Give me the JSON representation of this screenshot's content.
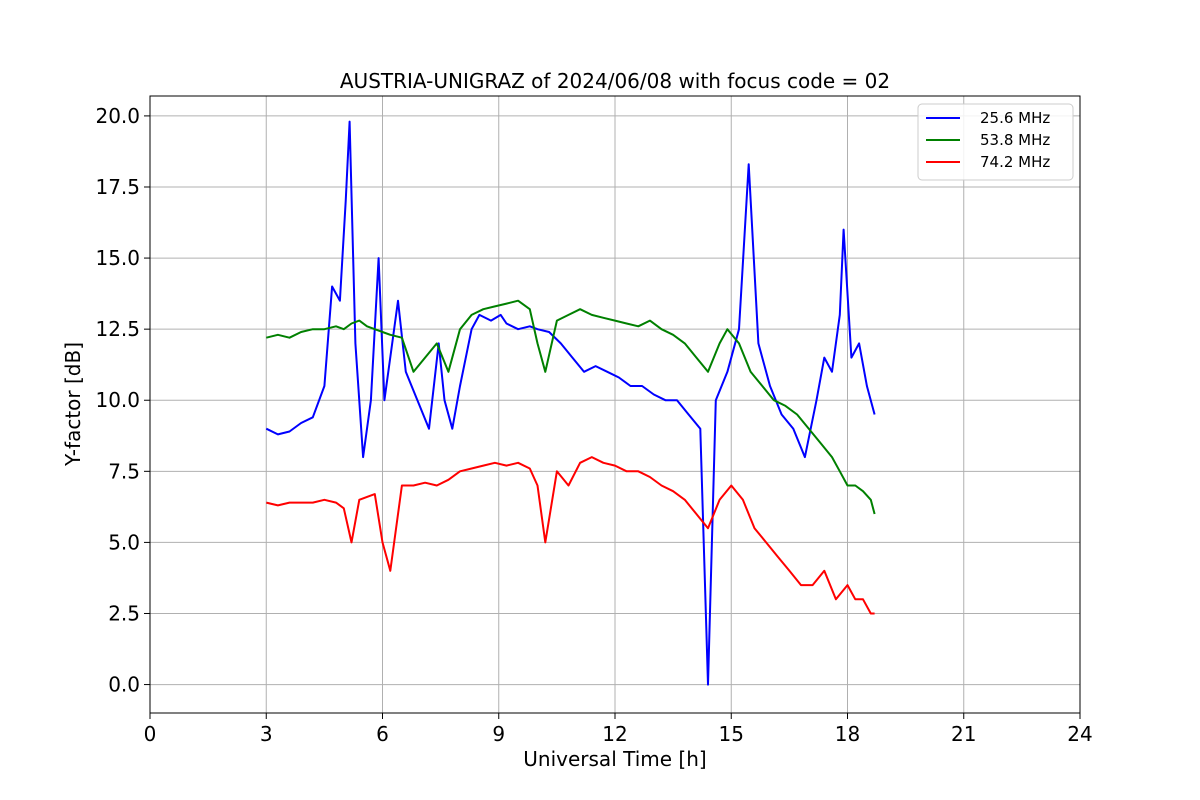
{
  "chart_data": {
    "type": "line",
    "title": "AUSTRIA-UNIGRAZ of 2024/06/08 with focus code = 02",
    "xlabel": "Universal Time [h]",
    "ylabel": "Y-factor [dB]",
    "xlim": [
      0,
      24
    ],
    "ylim": [
      -1,
      20.7
    ],
    "xticks": [
      0,
      3,
      6,
      9,
      12,
      15,
      18,
      21,
      24
    ],
    "xtick_labels": [
      "0",
      "3",
      "6",
      "9",
      "12",
      "15",
      "18",
      "21",
      "24"
    ],
    "yticks": [
      0,
      2.5,
      5,
      7.5,
      10,
      12.5,
      15,
      17.5,
      20
    ],
    "ytick_labels": [
      "0.0",
      "2.5",
      "5.0",
      "7.5",
      "10.0",
      "12.5",
      "15.0",
      "17.5",
      "20.0"
    ],
    "grid": true,
    "legend_position": "top-right",
    "series": [
      {
        "name": "25.6 MHz",
        "color": "#0000ff",
        "x": [
          3.0,
          3.3,
          3.6,
          3.9,
          4.2,
          4.5,
          4.7,
          4.9,
          5.05,
          5.15,
          5.3,
          5.5,
          5.7,
          5.9,
          6.05,
          6.25,
          6.4,
          6.6,
          6.9,
          7.2,
          7.45,
          7.6,
          7.8,
          8.0,
          8.3,
          8.5,
          8.8,
          9.05,
          9.2,
          9.5,
          9.8,
          10.0,
          10.3,
          10.6,
          10.9,
          11.2,
          11.5,
          11.8,
          12.1,
          12.4,
          12.7,
          13.0,
          13.3,
          13.6,
          13.9,
          14.2,
          14.4,
          14.6,
          14.9,
          15.2,
          15.45,
          15.7,
          16.0,
          16.3,
          16.6,
          16.9,
          17.2,
          17.4,
          17.6,
          17.8,
          17.9,
          18.1,
          18.3,
          18.5,
          18.7
        ],
        "y": [
          9.0,
          8.8,
          8.9,
          9.2,
          9.4,
          10.5,
          14.0,
          13.5,
          17.0,
          19.8,
          12.0,
          8.0,
          10.0,
          15.0,
          10.0,
          12.0,
          13.5,
          11.0,
          10.0,
          9.0,
          12.0,
          10.0,
          9.0,
          10.5,
          12.5,
          13.0,
          12.8,
          13.0,
          12.7,
          12.5,
          12.6,
          12.5,
          12.4,
          12.0,
          11.5,
          11.0,
          11.2,
          11.0,
          10.8,
          10.5,
          10.5,
          10.2,
          10.0,
          10.0,
          9.5,
          9.0,
          0.0,
          10.0,
          11.0,
          12.5,
          18.3,
          12.0,
          10.5,
          9.5,
          9.0,
          8.0,
          10.0,
          11.5,
          11.0,
          13.0,
          16.0,
          11.5,
          12.0,
          10.5,
          9.5
        ]
      },
      {
        "name": "53.8 MHz",
        "color": "#008000",
        "x": [
          3.0,
          3.3,
          3.6,
          3.9,
          4.2,
          4.5,
          4.8,
          5.0,
          5.2,
          5.4,
          5.6,
          5.8,
          6.0,
          6.2,
          6.5,
          6.8,
          7.1,
          7.4,
          7.7,
          8.0,
          8.3,
          8.6,
          8.9,
          9.2,
          9.5,
          9.8,
          10.0,
          10.2,
          10.5,
          10.8,
          11.1,
          11.4,
          11.7,
          12.0,
          12.3,
          12.6,
          12.9,
          13.2,
          13.5,
          13.8,
          14.1,
          14.4,
          14.7,
          14.9,
          15.2,
          15.5,
          15.8,
          16.1,
          16.4,
          16.7,
          17.0,
          17.3,
          17.6,
          17.8,
          18.0,
          18.2,
          18.4,
          18.6,
          18.7
        ],
        "y": [
          12.2,
          12.3,
          12.2,
          12.4,
          12.5,
          12.5,
          12.6,
          12.5,
          12.7,
          12.8,
          12.6,
          12.5,
          12.4,
          12.3,
          12.2,
          11.0,
          11.5,
          12.0,
          11.0,
          12.5,
          13.0,
          13.2,
          13.3,
          13.4,
          13.5,
          13.2,
          12.0,
          11.0,
          12.8,
          13.0,
          13.2,
          13.0,
          12.9,
          12.8,
          12.7,
          12.6,
          12.8,
          12.5,
          12.3,
          12.0,
          11.5,
          11.0,
          12.0,
          12.5,
          12.0,
          11.0,
          10.5,
          10.0,
          9.8,
          9.5,
          9.0,
          8.5,
          8.0,
          7.5,
          7.0,
          7.0,
          6.8,
          6.5,
          6.0
        ]
      },
      {
        "name": "74.2 MHz",
        "color": "#ff0000",
        "x": [
          3.0,
          3.3,
          3.6,
          3.9,
          4.2,
          4.5,
          4.8,
          5.0,
          5.2,
          5.4,
          5.6,
          5.8,
          6.0,
          6.2,
          6.5,
          6.8,
          7.1,
          7.4,
          7.7,
          8.0,
          8.3,
          8.6,
          8.9,
          9.2,
          9.5,
          9.8,
          10.0,
          10.2,
          10.5,
          10.8,
          11.1,
          11.4,
          11.7,
          12.0,
          12.3,
          12.6,
          12.9,
          13.2,
          13.5,
          13.8,
          14.1,
          14.4,
          14.7,
          15.0,
          15.3,
          15.6,
          15.9,
          16.2,
          16.5,
          16.8,
          17.1,
          17.4,
          17.7,
          18.0,
          18.2,
          18.4,
          18.6,
          18.7
        ],
        "y": [
          6.4,
          6.3,
          6.4,
          6.4,
          6.4,
          6.5,
          6.4,
          6.2,
          5.0,
          6.5,
          6.6,
          6.7,
          5.0,
          4.0,
          7.0,
          7.0,
          7.1,
          7.0,
          7.2,
          7.5,
          7.6,
          7.7,
          7.8,
          7.7,
          7.8,
          7.6,
          7.0,
          5.0,
          7.5,
          7.0,
          7.8,
          8.0,
          7.8,
          7.7,
          7.5,
          7.5,
          7.3,
          7.0,
          6.8,
          6.5,
          6.0,
          5.5,
          6.5,
          7.0,
          6.5,
          5.5,
          5.0,
          4.5,
          4.0,
          3.5,
          3.5,
          4.0,
          3.0,
          3.5,
          3.0,
          3.0,
          2.5,
          2.5
        ]
      }
    ]
  }
}
